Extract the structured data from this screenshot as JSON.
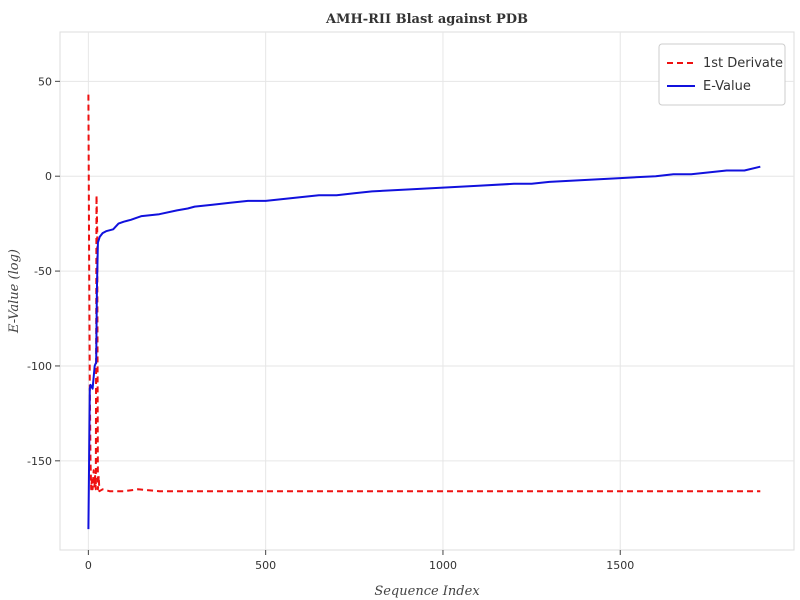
{
  "chart_data": {
    "type": "line",
    "title": "AMH-RII Blast against PDB",
    "xlabel": "Sequence Index",
    "ylabel": "E-Value (log)",
    "xlim": [
      -80,
      1990
    ],
    "ylim": [
      -197,
      76
    ],
    "x_ticks": [
      0,
      500,
      1000,
      1500
    ],
    "x_tick_labels": [
      "0",
      "500",
      "1000",
      "1500"
    ],
    "y_ticks": [
      50,
      0,
      -50,
      -100,
      -150
    ],
    "y_tick_labels": [
      "50",
      "0",
      "-50",
      "-100",
      "-150"
    ],
    "grid": true,
    "legend_position": "top-right",
    "series": [
      {
        "name": "1st Derivate",
        "color": "#ee1111",
        "dash": "dashed",
        "points": [
          [
            0,
            43
          ],
          [
            2,
            -40
          ],
          [
            4,
            -110
          ],
          [
            6,
            -150
          ],
          [
            8,
            -165
          ],
          [
            10,
            -160
          ],
          [
            12,
            -165
          ],
          [
            15,
            -155
          ],
          [
            17,
            -164
          ],
          [
            19,
            -158
          ],
          [
            21,
            -165
          ],
          [
            23,
            -10
          ],
          [
            25,
            -28
          ],
          [
            27,
            -165
          ],
          [
            29,
            -158
          ],
          [
            31,
            -166
          ],
          [
            40,
            -165
          ],
          [
            60,
            -166
          ],
          [
            100,
            -166
          ],
          [
            140,
            -165
          ],
          [
            200,
            -166
          ],
          [
            300,
            -166
          ],
          [
            500,
            -166
          ],
          [
            800,
            -166
          ],
          [
            1000,
            -166
          ],
          [
            1200,
            -166
          ],
          [
            1500,
            -166
          ],
          [
            1700,
            -166
          ],
          [
            1895,
            -166
          ]
        ]
      },
      {
        "name": "E-Value",
        "color": "#1111dd",
        "dash": "solid",
        "points": [
          [
            0,
            -186
          ],
          [
            2,
            -150
          ],
          [
            4,
            -112
          ],
          [
            6,
            -110
          ],
          [
            12,
            -112
          ],
          [
            18,
            -100
          ],
          [
            22,
            -98
          ],
          [
            24,
            -60
          ],
          [
            27,
            -35
          ],
          [
            32,
            -32
          ],
          [
            40,
            -30
          ],
          [
            50,
            -29
          ],
          [
            70,
            -28
          ],
          [
            85,
            -25
          ],
          [
            100,
            -24
          ],
          [
            120,
            -23
          ],
          [
            135,
            -22
          ],
          [
            150,
            -21
          ],
          [
            200,
            -20
          ],
          [
            250,
            -18
          ],
          [
            280,
            -17
          ],
          [
            300,
            -16
          ],
          [
            350,
            -15
          ],
          [
            400,
            -14
          ],
          [
            450,
            -13
          ],
          [
            500,
            -13
          ],
          [
            550,
            -12
          ],
          [
            600,
            -11
          ],
          [
            650,
            -10
          ],
          [
            700,
            -10
          ],
          [
            750,
            -9
          ],
          [
            800,
            -8
          ],
          [
            900,
            -7
          ],
          [
            1000,
            -6
          ],
          [
            1100,
            -5
          ],
          [
            1200,
            -4
          ],
          [
            1250,
            -4
          ],
          [
            1300,
            -3
          ],
          [
            1400,
            -2
          ],
          [
            1500,
            -1
          ],
          [
            1600,
            0
          ],
          [
            1650,
            1
          ],
          [
            1700,
            1
          ],
          [
            1750,
            2
          ],
          [
            1800,
            3
          ],
          [
            1850,
            3
          ],
          [
            1895,
            5
          ]
        ]
      }
    ]
  }
}
